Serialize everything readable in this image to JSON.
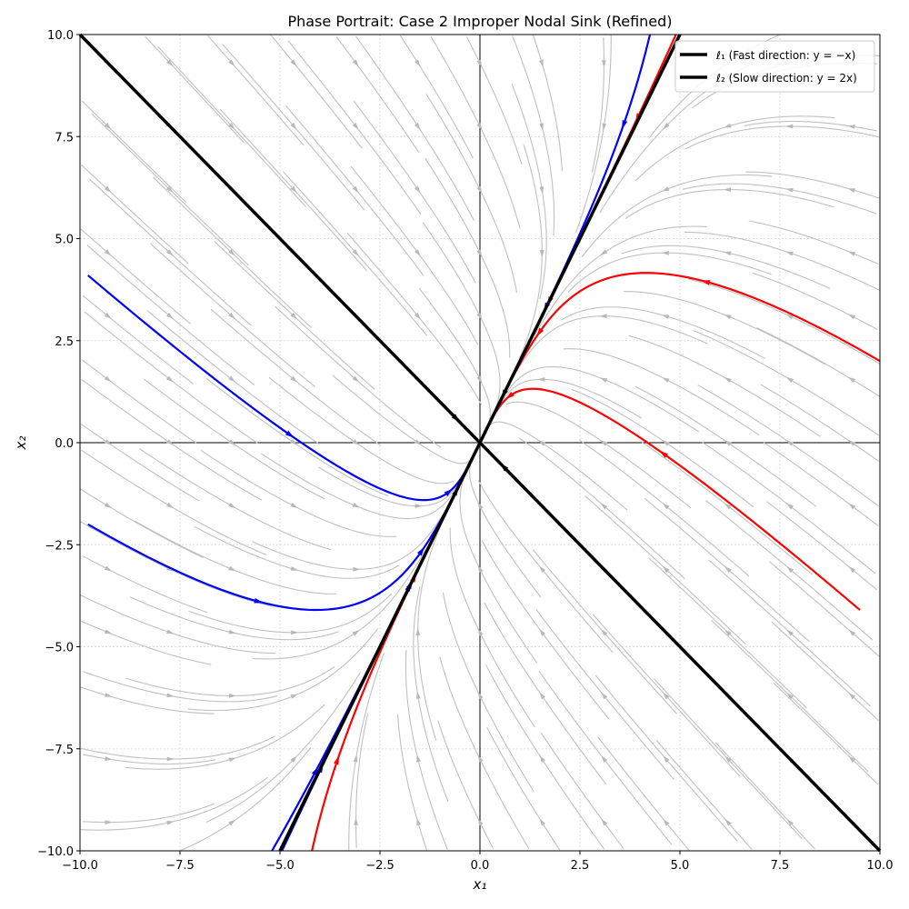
{
  "chart_data": {
    "type": "line",
    "title": "Phase Portrait: Case 2 Improper Nodal Sink (Refined)",
    "xlabel": "x₁",
    "ylabel": "x₂",
    "xlim": [
      -10,
      10
    ],
    "ylim": [
      -10,
      10
    ],
    "xticks": [
      "−10.0",
      "−7.5",
      "−5.0",
      "−2.5",
      "0.0",
      "2.5",
      "5.0",
      "7.5",
      "10.0"
    ],
    "yticks": [
      "−10.0",
      "−7.5",
      "−5.0",
      "−2.5",
      "0.0",
      "2.5",
      "5.0",
      "7.5",
      "10.0"
    ],
    "tick_values": [
      -10,
      -7.5,
      -5,
      -2.5,
      0,
      2.5,
      5,
      7.5,
      10
    ],
    "grid": true,
    "legend_position": "top-right",
    "vector_field": {
      "matrix": [
        [
          -3,
          1
        ],
        [
          2,
          -2
        ]
      ],
      "color": "#c0c0c0"
    },
    "eigenlines": [
      {
        "name": "ℓ₁ (Fast direction: y = −x)",
        "slope": -1,
        "color": "#000000"
      },
      {
        "name": "ℓ₂ (Slow direction: y = 2x)",
        "slope": 2,
        "color": "#000000"
      }
    ],
    "trajectories": [
      {
        "color": "#ff0000",
        "start": [
          10,
          2
        ]
      },
      {
        "color": "#ff0000",
        "start": [
          9.5,
          -4.1
        ]
      },
      {
        "color": "#ff0000",
        "start": [
          4.9,
          10
        ]
      },
      {
        "color": "#ff0000",
        "start": [
          -4.2,
          -10
        ]
      },
      {
        "color": "#0000ff",
        "start": [
          -9.8,
          4.1
        ]
      },
      {
        "color": "#0000ff",
        "start": [
          -9.8,
          -2
        ]
      },
      {
        "color": "#0000ff",
        "start": [
          4.25,
          10
        ]
      },
      {
        "color": "#0000ff",
        "start": [
          -5.2,
          -10
        ]
      },
      {
        "color": "#0000ff",
        "start": [
          -4.95,
          -10
        ]
      }
    ]
  }
}
